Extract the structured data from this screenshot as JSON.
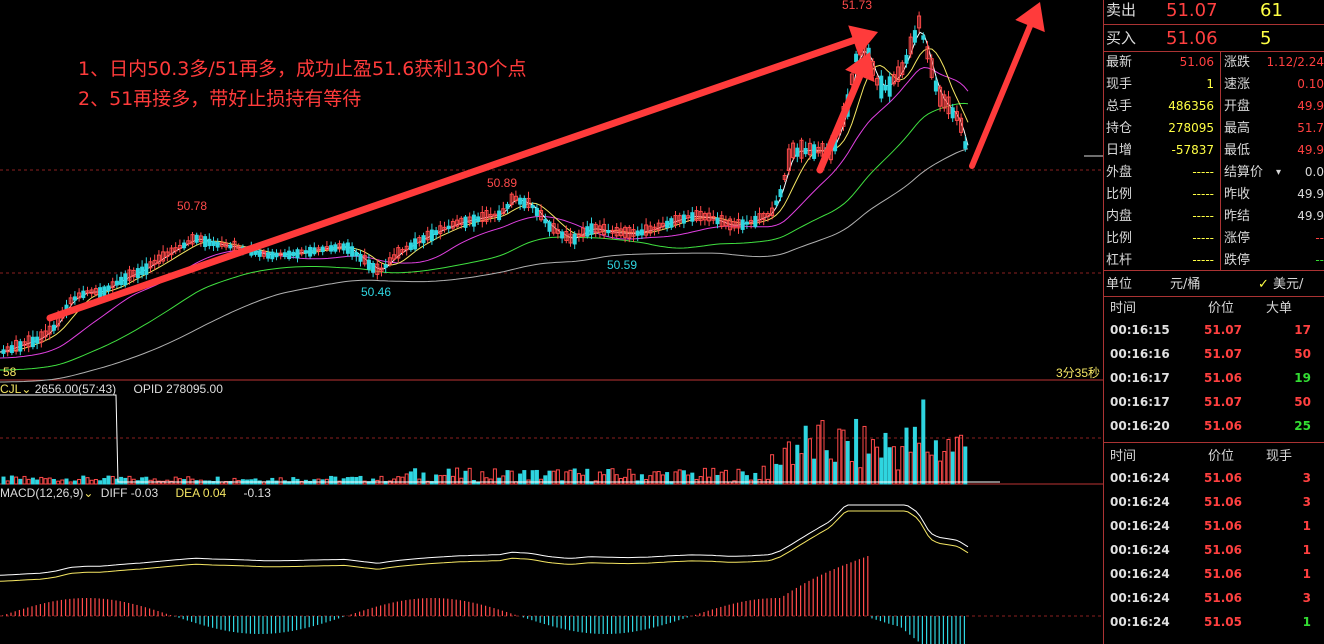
{
  "annotations": {
    "line1": "1、日内50.3多/51再多，成功止盈51.6获利130个点",
    "line2": "2、51再接多，带好止损持有等待"
  },
  "price_labels": {
    "p1": "50.78",
    "p2": "50.46",
    "p3": "50.89",
    "p4": "50.59",
    "p5": "51.73",
    "left_edge": "58"
  },
  "countdown": "3分35秒",
  "volume_panel": {
    "indicator": "CJL",
    "value": "2656.00(57:43)",
    "opid": "OPID 278095.00"
  },
  "macd_panel": {
    "indicator": "MACD(12,26,9)",
    "diff": "DIFF -0.03",
    "dea": "DEA 0.04",
    "macd": "-0.13"
  },
  "quote": {
    "sell_label": "卖出",
    "sell_price": "51.07",
    "sell_qty": "61",
    "buy_label": "买入",
    "buy_price": "51.06",
    "buy_qty": "5",
    "left": [
      {
        "label": "最新",
        "value": "51.06",
        "color": "red"
      },
      {
        "label": "现手",
        "value": "1",
        "color": "yel"
      },
      {
        "label": "总手",
        "value": "486356",
        "color": "yel"
      },
      {
        "label": "持仓",
        "value": "278095",
        "color": "yel"
      },
      {
        "label": "日增",
        "value": "-57837",
        "color": "yel"
      },
      {
        "label": "外盘",
        "value": "-----",
        "color": "yel"
      },
      {
        "label": "比例",
        "value": "-----",
        "color": "yel"
      },
      {
        "label": "内盘",
        "value": "-----",
        "color": "yel"
      },
      {
        "label": "比例",
        "value": "-----",
        "color": "yel"
      },
      {
        "label": "杠杆",
        "value": "-----",
        "color": "yel"
      }
    ],
    "right": [
      {
        "label": "涨跌",
        "value": "1.12/2.24",
        "color": "red"
      },
      {
        "label": "速涨",
        "value": "0.10",
        "color": "red"
      },
      {
        "label": "开盘",
        "value": "49.9",
        "color": "red"
      },
      {
        "label": "最高",
        "value": "51.7",
        "color": "red"
      },
      {
        "label": "最低",
        "value": "49.9",
        "color": "red"
      },
      {
        "label": "结算价",
        "value": "0.0",
        "color": "white"
      },
      {
        "label": "昨收",
        "value": "49.9",
        "color": "white"
      },
      {
        "label": "昨结",
        "value": "49.9",
        "color": "white"
      },
      {
        "label": "涨停",
        "value": "--",
        "color": "red"
      },
      {
        "label": "跌停",
        "value": "--",
        "color": "grn"
      }
    ],
    "unit_label": "单位",
    "unit_value": "元/桶",
    "unit_alt": "美元/"
  },
  "big_orders": {
    "headers": [
      "时间",
      "价位",
      "大单"
    ],
    "rows": [
      {
        "time": "00:16:15",
        "price": "51.07",
        "qty": "17",
        "qcolor": "red"
      },
      {
        "time": "00:16:16",
        "price": "51.07",
        "qty": "50",
        "qcolor": "red"
      },
      {
        "time": "00:16:17",
        "price": "51.06",
        "qty": "19",
        "qcolor": "grn"
      },
      {
        "time": "00:16:17",
        "price": "51.07",
        "qty": "50",
        "qcolor": "red"
      },
      {
        "time": "00:16:20",
        "price": "51.06",
        "qty": "25",
        "qcolor": "grn"
      }
    ]
  },
  "ticks": {
    "headers": [
      "时间",
      "价位",
      "现手"
    ],
    "rows": [
      {
        "time": "00:16:24",
        "price": "51.06",
        "qty": "3",
        "qcolor": "red"
      },
      {
        "time": "00:16:24",
        "price": "51.06",
        "qty": "3",
        "qcolor": "red"
      },
      {
        "time": "00:16:24",
        "price": "51.06",
        "qty": "1",
        "qcolor": "red"
      },
      {
        "time": "00:16:24",
        "price": "51.06",
        "qty": "1",
        "qcolor": "red"
      },
      {
        "time": "00:16:24",
        "price": "51.06",
        "qty": "1",
        "qcolor": "red"
      },
      {
        "time": "00:16:24",
        "price": "51.06",
        "qty": "3",
        "qcolor": "red"
      },
      {
        "time": "00:16:24",
        "price": "51.05",
        "qty": "1",
        "qcolor": "grn"
      }
    ]
  },
  "colors": {
    "up": "#ff4a4a",
    "down": "#2fd5e0",
    "ma5": "#ffffff",
    "ma10": "#f5e663",
    "ma20": "#e040e0",
    "ma40": "#40e040",
    "ma60": "#b0b0b0",
    "arrow": "#ff3b3b"
  }
}
